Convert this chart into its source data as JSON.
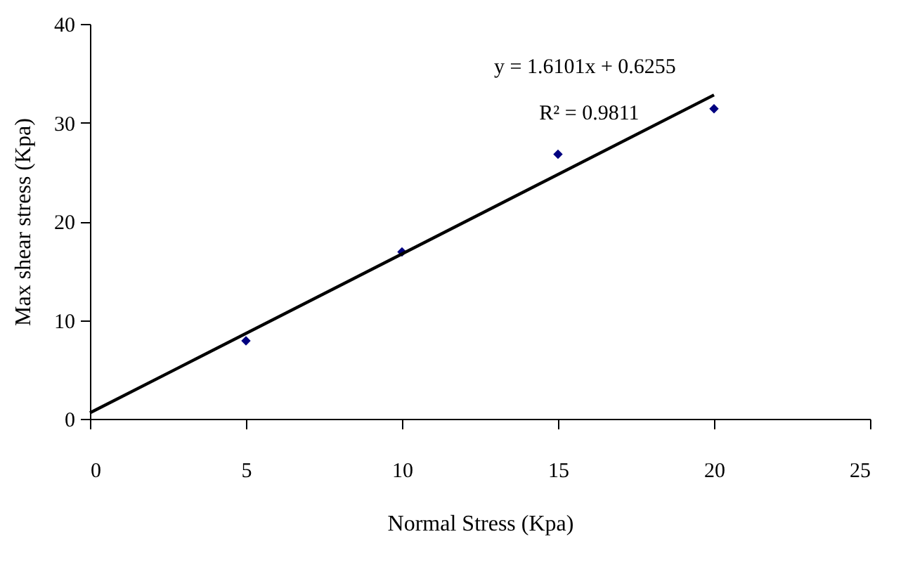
{
  "chart_data": {
    "type": "scatter",
    "xlabel": "Normal Stress (Kpa)",
    "ylabel": "Max shear stress (Kpa)",
    "xlim": [
      0,
      25
    ],
    "xticks": [
      0,
      5,
      10,
      15,
      20,
      25
    ],
    "ylim": [
      0,
      40
    ],
    "yticks": [
      0,
      10,
      20,
      30,
      40
    ],
    "grid": false,
    "series": [
      {
        "marker": "diamond",
        "color": "#000080",
        "x": [
          5,
          10,
          15,
          20
        ],
        "values": [
          7.9,
          16.9,
          26.8,
          31.4
        ]
      },
      {
        "type": "line",
        "color": "#000000",
        "x": [
          0,
          20
        ],
        "values": [
          0.6,
          32.8
        ]
      }
    ],
    "annotations": [
      "y = 1.6101x + 0.6255",
      "R² = 0.9811"
    ]
  }
}
